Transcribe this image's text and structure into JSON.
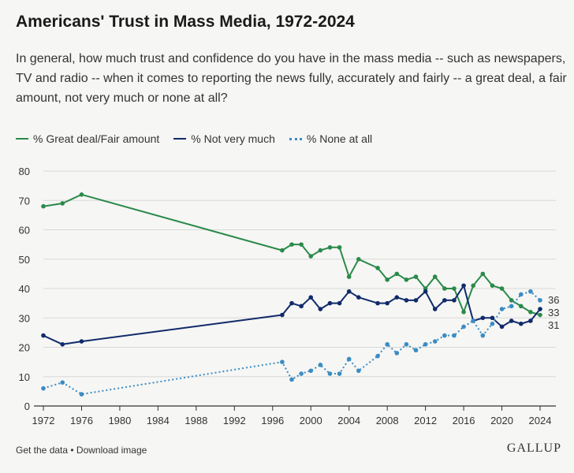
{
  "header": {
    "title": "Americans' Trust in Mass Media, 1972-2024",
    "subtitle": "In general, how much trust and confidence do you have in the mass media -- such as newspapers, TV and radio -- when it comes to reporting the news fully, accurately and fairly -- a great deal, a fair amount, not very much or none at all?"
  },
  "footer": {
    "get_data": "Get the data",
    "separator": " • ",
    "download": "Download image",
    "brand": "GALLUP"
  },
  "colors": {
    "green": "#2a8a4a",
    "navy": "#102a6b",
    "blue": "#3a8cc4",
    "grid": "#d8d8d8",
    "axis": "#333333"
  },
  "chart_data": {
    "type": "line",
    "title": "",
    "xlabel": "",
    "ylabel": "",
    "xlim": [
      1972,
      2024
    ],
    "ylim": [
      0,
      80
    ],
    "x_ticks": [
      1972,
      1976,
      1980,
      1984,
      1988,
      1992,
      1996,
      2000,
      2004,
      2008,
      2012,
      2016,
      2020,
      2024
    ],
    "y_ticks": [
      0,
      10,
      20,
      30,
      40,
      50,
      60,
      70,
      80
    ],
    "grid": true,
    "legend_position": "top-left",
    "series": [
      {
        "name": "% Great deal/Fair amount",
        "style": "solid",
        "color_key": "green",
        "end_label": "31",
        "points": [
          [
            1972,
            68
          ],
          [
            1974,
            69
          ],
          [
            1976,
            72
          ],
          [
            1997,
            53
          ],
          [
            1998,
            55
          ],
          [
            1999,
            55
          ],
          [
            2000,
            51
          ],
          [
            2001,
            53
          ],
          [
            2002,
            54
          ],
          [
            2003,
            54
          ],
          [
            2004,
            44
          ],
          [
            2005,
            50
          ],
          [
            2007,
            47
          ],
          [
            2008,
            43
          ],
          [
            2009,
            45
          ],
          [
            2010,
            43
          ],
          [
            2011,
            44
          ],
          [
            2012,
            40
          ],
          [
            2013,
            44
          ],
          [
            2014,
            40
          ],
          [
            2015,
            40
          ],
          [
            2016,
            32
          ],
          [
            2017,
            41
          ],
          [
            2018,
            45
          ],
          [
            2019,
            41
          ],
          [
            2020,
            40
          ],
          [
            2021,
            36
          ],
          [
            2022,
            34
          ],
          [
            2023,
            32
          ],
          [
            2024,
            31
          ]
        ]
      },
      {
        "name": "% Not very much",
        "style": "solid",
        "color_key": "navy",
        "end_label": "33",
        "points": [
          [
            1972,
            24
          ],
          [
            1974,
            21
          ],
          [
            1976,
            22
          ],
          [
            1997,
            31
          ],
          [
            1998,
            35
          ],
          [
            1999,
            34
          ],
          [
            2000,
            37
          ],
          [
            2001,
            33
          ],
          [
            2002,
            35
          ],
          [
            2003,
            35
          ],
          [
            2004,
            39
          ],
          [
            2005,
            37
          ],
          [
            2007,
            35
          ],
          [
            2008,
            35
          ],
          [
            2009,
            37
          ],
          [
            2010,
            36
          ],
          [
            2011,
            36
          ],
          [
            2012,
            39
          ],
          [
            2013,
            33
          ],
          [
            2014,
            36
          ],
          [
            2015,
            36
          ],
          [
            2016,
            41
          ],
          [
            2017,
            29
          ],
          [
            2018,
            30
          ],
          [
            2019,
            30
          ],
          [
            2020,
            27
          ],
          [
            2021,
            29
          ],
          [
            2022,
            28
          ],
          [
            2023,
            29
          ],
          [
            2024,
            33
          ]
        ]
      },
      {
        "name": "% None at all",
        "style": "dotted",
        "color_key": "blue",
        "end_label": "36",
        "points": [
          [
            1972,
            6
          ],
          [
            1974,
            8
          ],
          [
            1976,
            4
          ],
          [
            1997,
            15
          ],
          [
            1998,
            9
          ],
          [
            1999,
            11
          ],
          [
            2000,
            12
          ],
          [
            2001,
            14
          ],
          [
            2002,
            11
          ],
          [
            2003,
            11
          ],
          [
            2004,
            16
          ],
          [
            2005,
            12
          ],
          [
            2007,
            17
          ],
          [
            2008,
            21
          ],
          [
            2009,
            18
          ],
          [
            2010,
            21
          ],
          [
            2011,
            19
          ],
          [
            2012,
            21
          ],
          [
            2013,
            22
          ],
          [
            2014,
            24
          ],
          [
            2015,
            24
          ],
          [
            2016,
            27
          ],
          [
            2017,
            29
          ],
          [
            2018,
            24
          ],
          [
            2019,
            28
          ],
          [
            2020,
            33
          ],
          [
            2021,
            34
          ],
          [
            2022,
            38
          ],
          [
            2023,
            39
          ],
          [
            2024,
            36
          ]
        ]
      }
    ]
  }
}
